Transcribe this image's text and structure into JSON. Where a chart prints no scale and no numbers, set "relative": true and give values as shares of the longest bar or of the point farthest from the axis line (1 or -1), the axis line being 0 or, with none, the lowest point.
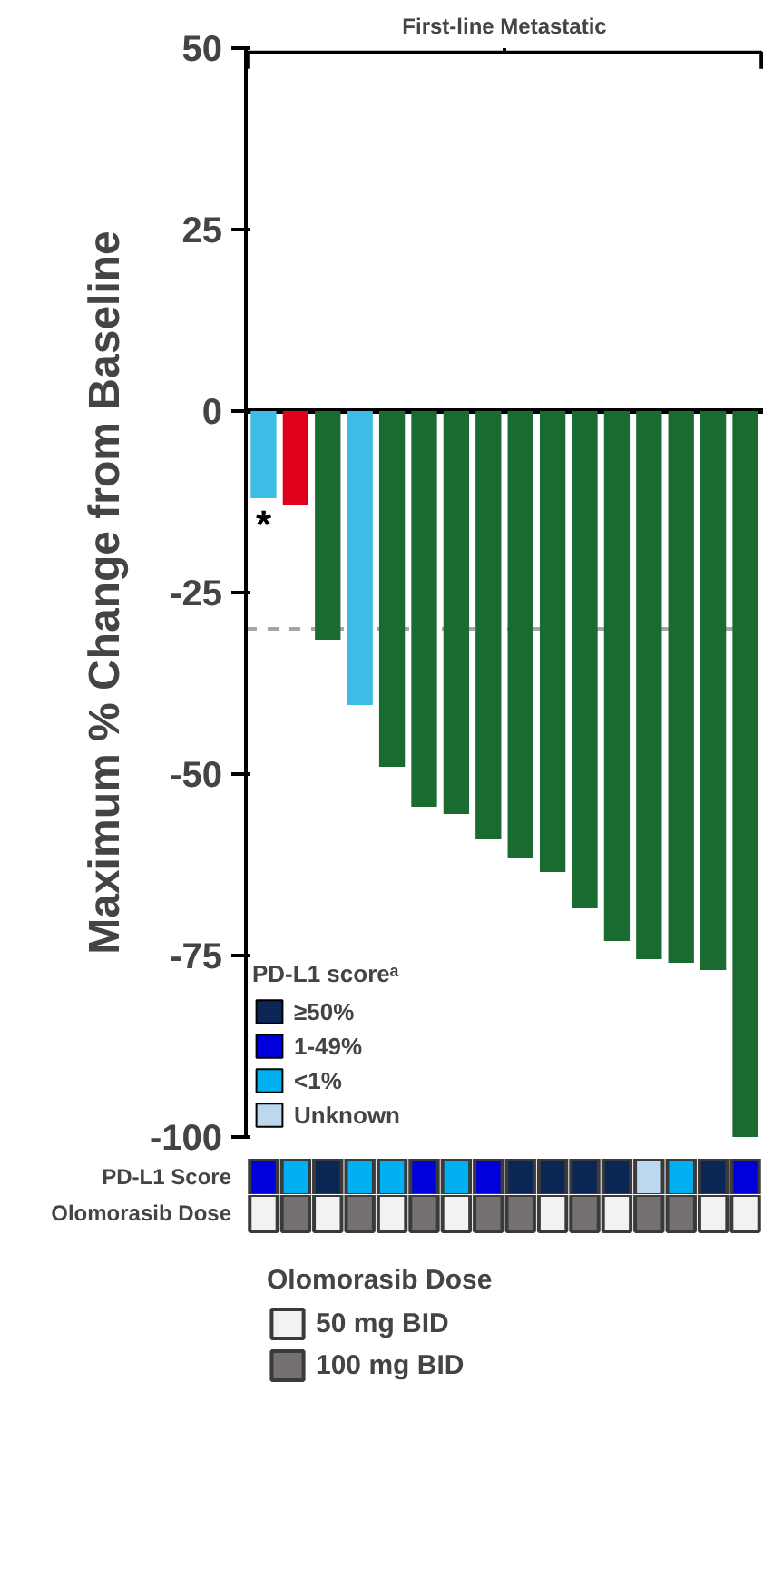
{
  "chart_data": [
    {
      "type": "bar",
      "title": "First-line Metastatic",
      "ylabel": "Maximum % Change from Baseline",
      "categories": [
        null,
        null,
        null,
        null,
        null,
        null,
        null,
        null,
        null,
        null,
        null,
        null,
        null,
        null,
        null,
        null
      ],
      "values": [
        -12,
        -13,
        -31.5,
        -40.5,
        -49,
        -54.5,
        -55.5,
        -59,
        -61.5,
        -63.5,
        -68.5,
        -73,
        -75.5,
        -76,
        -77,
        -100
      ],
      "colors": [
        "#3dbde6",
        "#e0001b",
        "#1a6b30",
        "#3dbde6",
        "#1a6b30",
        "#1a6b30",
        "#1a6b30",
        "#1a6b30",
        "#1a6b30",
        "#1a6b30",
        "#1a6b30",
        "#1a6b30",
        "#1a6b30",
        "#1a6b30",
        "#1a6b30",
        "#1a6b30"
      ],
      "ylim": [
        -100,
        50
      ],
      "yticks": [
        50,
        25,
        0,
        -25,
        -50,
        -75,
        -100
      ],
      "grid": false,
      "ref_lines": [
        {
          "axis": "y",
          "value": 0,
          "color": "#000000",
          "line_style": "solid"
        },
        {
          "axis": "y",
          "value": -30,
          "color": "#a6a6a6",
          "line_style": "dashed"
        }
      ],
      "annotations": [
        "*"
      ]
    },
    {
      "type": "bar",
      "relative": true,
      "ylabel": "PD-L1 Score",
      "legend_title": "PD-L1 scoreᵃ",
      "legend": "top left",
      "categories": [
        null,
        null,
        null,
        null,
        null,
        null,
        null,
        null,
        null,
        null,
        null,
        null,
        null,
        null,
        null,
        null
      ],
      "series": [
        {
          "name": "≥50%",
          "color": "#0b2555",
          "values": [
            null,
            null,
            1,
            null,
            null,
            null,
            null,
            null,
            1,
            1,
            1,
            1,
            null,
            null,
            1,
            null
          ]
        },
        {
          "name": "1-49%",
          "color": "#0000dd",
          "values": [
            1,
            null,
            null,
            null,
            null,
            1,
            null,
            1,
            null,
            null,
            null,
            null,
            null,
            null,
            null,
            1
          ]
        },
        {
          "name": "<1%",
          "color": "#00b0f0",
          "values": [
            null,
            1,
            null,
            1,
            1,
            null,
            1,
            null,
            null,
            null,
            null,
            null,
            null,
            1,
            null,
            null
          ]
        },
        {
          "name": "Unknown",
          "color": "#bdd7ee",
          "values": [
            null,
            null,
            null,
            null,
            null,
            null,
            null,
            null,
            null,
            null,
            null,
            null,
            1,
            null,
            null,
            null
          ]
        }
      ]
    },
    {
      "type": "bar",
      "relative": true,
      "ylabel": "Olomorasib Dose",
      "legend_title": "Olomorasib Dose",
      "legend": "bottom",
      "categories": [
        null,
        null,
        null,
        null,
        null,
        null,
        null,
        null,
        null,
        null,
        null,
        null,
        null,
        null,
        null,
        null
      ],
      "series": [
        {
          "name": "50 mg BID",
          "color": "#f2f2f2",
          "values": [
            1,
            null,
            1,
            null,
            1,
            null,
            1,
            null,
            null,
            1,
            null,
            1,
            null,
            null,
            1,
            1
          ]
        },
        {
          "name": "100 mg BID",
          "color": "#767171",
          "values": [
            null,
            1,
            null,
            1,
            null,
            1,
            null,
            1,
            1,
            null,
            1,
            null,
            1,
            1,
            null,
            null
          ]
        }
      ]
    }
  ]
}
